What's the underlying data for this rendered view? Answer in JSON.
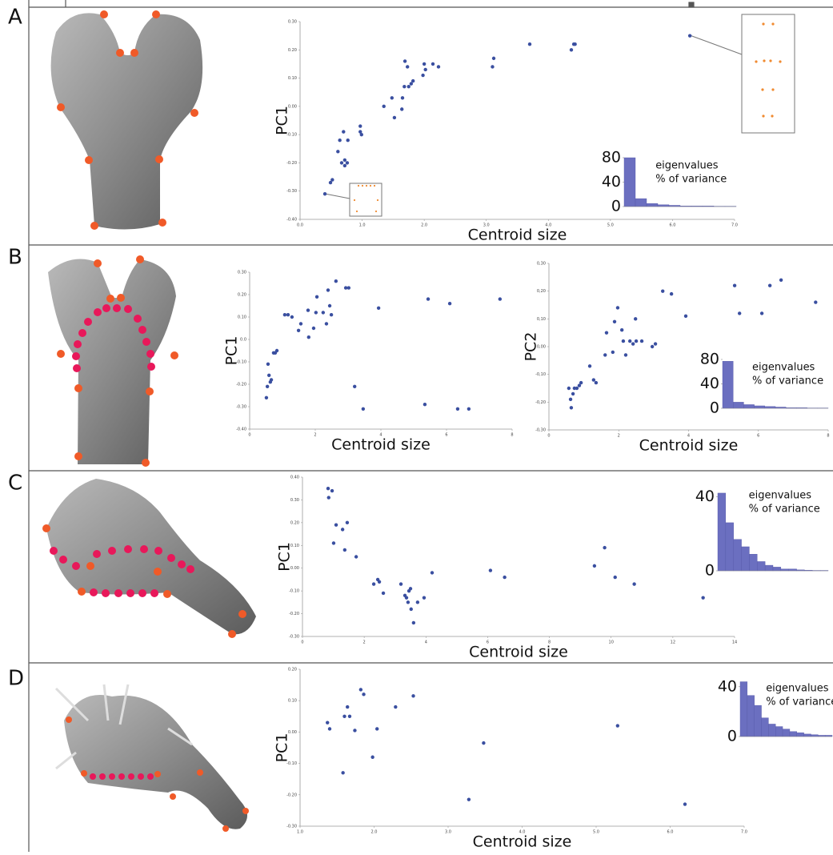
{
  "panel_labels": [
    "A",
    "B",
    "C",
    "D"
  ],
  "chart_data": [
    {
      "type": "scatter",
      "x_label": "Centroid size",
      "y_label": "PC1",
      "color": "#3a4fa0",
      "xlim": [
        0,
        7
      ],
      "ylim": [
        -0.4,
        0.3
      ],
      "xticks": [
        {
          "value": 0,
          "label": "0.0"
        },
        {
          "value": 1,
          "label": "1.0"
        },
        {
          "value": 2,
          "label": "2.0"
        },
        {
          "value": 3,
          "label": "3.0"
        },
        {
          "value": 4,
          "label": "4.0"
        },
        {
          "value": 5,
          "label": "5.0"
        },
        {
          "value": 6,
          "label": "6.0"
        },
        {
          "value": 7,
          "label": "7.0"
        }
      ],
      "yticks": [
        {
          "value": -0.4,
          "label": "-0.40"
        },
        {
          "value": -0.3,
          "label": "-0.30"
        },
        {
          "value": -0.2,
          "label": "-0.20"
        },
        {
          "value": -0.1,
          "label": "-0.10"
        },
        {
          "value": 0,
          "label": "0.00"
        },
        {
          "value": 0.1,
          "label": "0.10"
        },
        {
          "value": 0.2,
          "label": "0.20"
        },
        {
          "value": 0.3,
          "label": "0.30"
        }
      ],
      "x": [
        0.4,
        0.49,
        0.52,
        0.61,
        0.64,
        0.7,
        0.72,
        0.67,
        0.72,
        0.76,
        0.77,
        0.97,
        0.97,
        0.99,
        1.35,
        1.48,
        1.52,
        1.64,
        1.65,
        1.68,
        1.69,
        1.73,
        1.75,
        1.79,
        1.82,
        1.98,
        2.0,
        2.02,
        2.14,
        2.23,
        3.12,
        3.1,
        3.7,
        4.37,
        4.41,
        4.43,
        6.28
      ],
      "values": [
        -0.31,
        -0.27,
        -0.26,
        -0.16,
        -0.12,
        -0.09,
        -0.19,
        -0.2,
        -0.21,
        -0.2,
        -0.12,
        -0.07,
        -0.09,
        -0.1,
        0.0,
        0.03,
        -0.04,
        -0.01,
        0.03,
        0.07,
        0.16,
        0.14,
        0.07,
        0.08,
        0.09,
        0.11,
        0.15,
        0.13,
        0.15,
        0.14,
        0.17,
        0.14,
        0.22,
        0.2,
        0.22,
        0.22,
        0.25
      ]
    },
    {
      "type": "bar",
      "color": "#6b6fc0",
      "annotations": [
        "eigenvalues",
        "% of variance"
      ],
      "ylim": [
        0,
        80
      ],
      "yticks": [
        0,
        40,
        80
      ],
      "categories": [
        null,
        null,
        null,
        null,
        null,
        null,
        null,
        null,
        null,
        null
      ],
      "values": [
        80,
        13,
        5,
        3,
        2,
        1,
        1,
        1,
        0.5,
        0.5
      ]
    },
    {
      "type": "scatter",
      "x_label": "Centroid size",
      "y_label": "PC1",
      "color": "#3a4fa0",
      "xlim": [
        0,
        8
      ],
      "ylim": [
        -0.4,
        0.3
      ],
      "xticks": [
        0,
        2,
        4,
        6,
        8
      ],
      "yticks": [
        {
          "value": -0.4,
          "label": "-0.40"
        },
        {
          "value": -0.3,
          "label": "-0.30"
        },
        {
          "value": -0.2,
          "label": "-0.20"
        },
        {
          "value": -0.1,
          "label": "-0.10"
        },
        {
          "value": 0,
          "label": "0.0"
        },
        {
          "value": 0.1,
          "label": "0.10"
        },
        {
          "value": 0.2,
          "label": "0.20"
        },
        {
          "value": 0.3,
          "label": "0.30"
        }
      ],
      "x": [
        0.51,
        0.54,
        0.56,
        0.59,
        0.63,
        0.66,
        0.73,
        0.78,
        0.83,
        1.07,
        1.17,
        1.29,
        1.49,
        1.56,
        1.8,
        1.78,
        1.95,
        2.02,
        2.05,
        2.24,
        2.34,
        2.39,
        2.44,
        2.49,
        2.63,
        2.93,
        3.02,
        3.2,
        3.46,
        3.93,
        5.34,
        5.44,
        6.1,
        6.34,
        6.68,
        7.63
      ],
      "values": [
        -0.26,
        -0.21,
        -0.11,
        -0.16,
        -0.19,
        -0.18,
        -0.06,
        -0.06,
        -0.05,
        0.11,
        0.11,
        0.1,
        0.04,
        0.07,
        0.01,
        0.13,
        0.05,
        0.12,
        0.19,
        0.12,
        0.07,
        0.22,
        0.15,
        0.11,
        0.26,
        0.23,
        0.23,
        -0.21,
        -0.31,
        0.14,
        -0.29,
        0.18,
        0.16,
        -0.31,
        -0.31,
        0.18
      ]
    },
    {
      "type": "scatter",
      "x_label": "Centroid size",
      "y_label": "PC2",
      "color": "#3a4fa0",
      "xlim": [
        0,
        8
      ],
      "ylim": [
        -0.3,
        0.3
      ],
      "xticks": [
        0,
        2,
        4,
        6,
        8
      ],
      "yticks": [
        {
          "value": -0.3,
          "label": "-0,30"
        },
        {
          "value": -0.2,
          "label": "-0,20"
        },
        {
          "value": -0.1,
          "label": "-0,10"
        },
        {
          "value": 0,
          "label": "0,00"
        },
        {
          "value": 0.1,
          "label": "0,10"
        },
        {
          "value": 0.2,
          "label": "0,20"
        },
        {
          "value": 0.3,
          "label": "0,30"
        }
      ],
      "x": [
        0.57,
        0.62,
        0.64,
        0.69,
        0.73,
        0.8,
        0.87,
        0.92,
        1.17,
        1.28,
        1.35,
        1.61,
        1.65,
        1.83,
        1.88,
        1.97,
        2.09,
        2.13,
        2.2,
        2.32,
        2.41,
        2.48,
        2.5,
        2.66,
        2.96,
        3.05,
        3.26,
        3.51,
        3.92,
        5.32,
        5.46,
        6.1,
        6.33,
        6.65,
        7.64
      ],
      "values": [
        -0.15,
        -0.19,
        -0.22,
        -0.17,
        -0.15,
        -0.15,
        -0.14,
        -0.13,
        -0.07,
        -0.12,
        -0.13,
        -0.03,
        0.05,
        -0.02,
        0.09,
        0.14,
        0.06,
        0.02,
        -0.03,
        0.02,
        0.01,
        0.1,
        0.02,
        0.02,
        0.0,
        0.01,
        0.2,
        0.19,
        0.11,
        0.22,
        0.12,
        0.12,
        0.22,
        0.24,
        0.16
      ]
    },
    {
      "type": "bar",
      "color": "#6b6fc0",
      "annotations": [
        "eigenvalues",
        "% of variance"
      ],
      "ylim": [
        0,
        80
      ],
      "yticks": [
        0,
        40,
        80
      ],
      "categories": [
        null,
        null,
        null,
        null,
        null,
        null,
        null,
        null,
        null,
        null
      ],
      "values": [
        77,
        10,
        6,
        4,
        3,
        2,
        1,
        1,
        0.5,
        0.5
      ]
    },
    {
      "type": "scatter",
      "x_label": "Centroid size",
      "y_label": "PC1",
      "color": "#3a4fa0",
      "xlim": [
        0,
        14
      ],
      "ylim": [
        -0.3,
        0.4
      ],
      "xticks": [
        0,
        2,
        4,
        6,
        8,
        10,
        12,
        14
      ],
      "yticks": [
        {
          "value": -0.3,
          "label": "-0.30"
        },
        {
          "value": -0.2,
          "label": "-0.20"
        },
        {
          "value": -0.1,
          "label": "-0.10"
        },
        {
          "value": 0,
          "label": "0.00"
        },
        {
          "value": 0.1,
          "label": "0.10"
        },
        {
          "value": 0.2,
          "label": "0.20"
        },
        {
          "value": 0.3,
          "label": "0.30"
        },
        {
          "value": 0.4,
          "label": "0.40"
        }
      ],
      "x": [
        0.83,
        0.96,
        0.85,
        1.09,
        1.3,
        1.45,
        1.37,
        1.01,
        1.74,
        2.31,
        2.44,
        2.49,
        2.62,
        3.19,
        3.32,
        3.37,
        3.42,
        3.45,
        3.5,
        3.52,
        3.6,
        3.73,
        3.94,
        4.2,
        6.09,
        6.55,
        9.46,
        9.79,
        10.13,
        10.75,
        12.98
      ],
      "values": [
        0.35,
        0.34,
        0.31,
        0.19,
        0.17,
        0.2,
        0.08,
        0.11,
        0.05,
        -0.07,
        -0.05,
        -0.06,
        -0.11,
        -0.07,
        -0.12,
        -0.13,
        -0.15,
        -0.1,
        -0.09,
        -0.18,
        -0.24,
        -0.15,
        -0.13,
        -0.02,
        -0.01,
        -0.04,
        0.01,
        0.09,
        -0.04,
        -0.07,
        -0.13
      ]
    },
    {
      "type": "bar",
      "color": "#6b6fc0",
      "annotations": [
        "eigenvalues",
        "% of variance"
      ],
      "ylim": [
        0,
        45
      ],
      "yticks": [
        0,
        40
      ],
      "categories": [
        null,
        null,
        null,
        null,
        null,
        null,
        null,
        null,
        null,
        null,
        null,
        null,
        null,
        null
      ],
      "values": [
        42,
        26,
        17,
        13,
        9,
        5,
        3,
        2,
        1,
        1,
        0.5,
        0.3,
        0.2,
        0.2
      ]
    },
    {
      "type": "scatter",
      "x_label": "Centroid size",
      "y_label": "PC1",
      "color": "#3a4fa0",
      "xlim": [
        1,
        7
      ],
      "ylim": [
        -0.3,
        0.2
      ],
      "xticks": [
        {
          "value": 1,
          "label": "1.0"
        },
        {
          "value": 2,
          "label": "2.0"
        },
        {
          "value": 3,
          "label": "3.0"
        },
        {
          "value": 4,
          "label": "4.0"
        },
        {
          "value": 5,
          "label": "5.0"
        },
        {
          "value": 6,
          "label": "6.0"
        },
        {
          "value": 7,
          "label": "7.0"
        }
      ],
      "yticks": [
        {
          "value": -0.3,
          "label": "-0.30"
        },
        {
          "value": -0.2,
          "label": "-0.20"
        },
        {
          "value": -0.1,
          "label": "-0.10"
        },
        {
          "value": 0,
          "label": "0.00"
        },
        {
          "value": 0.1,
          "label": "0.10"
        },
        {
          "value": 0.2,
          "label": "0.20"
        }
      ],
      "x": [
        1.37,
        1.4,
        1.58,
        1.6,
        1.64,
        1.67,
        1.74,
        1.82,
        1.86,
        1.98,
        2.04,
        2.29,
        2.53,
        3.28,
        3.48,
        5.29,
        6.2
      ],
      "values": [
        0.03,
        0.01,
        -0.13,
        0.05,
        0.08,
        0.05,
        0.005,
        0.135,
        0.12,
        -0.08,
        0.01,
        0.08,
        0.115,
        -0.215,
        -0.035,
        0.02,
        -0.23
      ]
    },
    {
      "type": "bar",
      "color": "#6b6fc0",
      "annotations": [
        "eigenvalues",
        "% of variance"
      ],
      "ylim": [
        0,
        45
      ],
      "yticks": [
        0,
        40
      ],
      "categories": [
        null,
        null,
        null,
        null,
        null,
        null,
        null,
        null,
        null,
        null,
        null,
        null,
        null
      ],
      "values": [
        44,
        33,
        25,
        15,
        10,
        8,
        6,
        4,
        3,
        2,
        1.5,
        1,
        1
      ]
    }
  ]
}
